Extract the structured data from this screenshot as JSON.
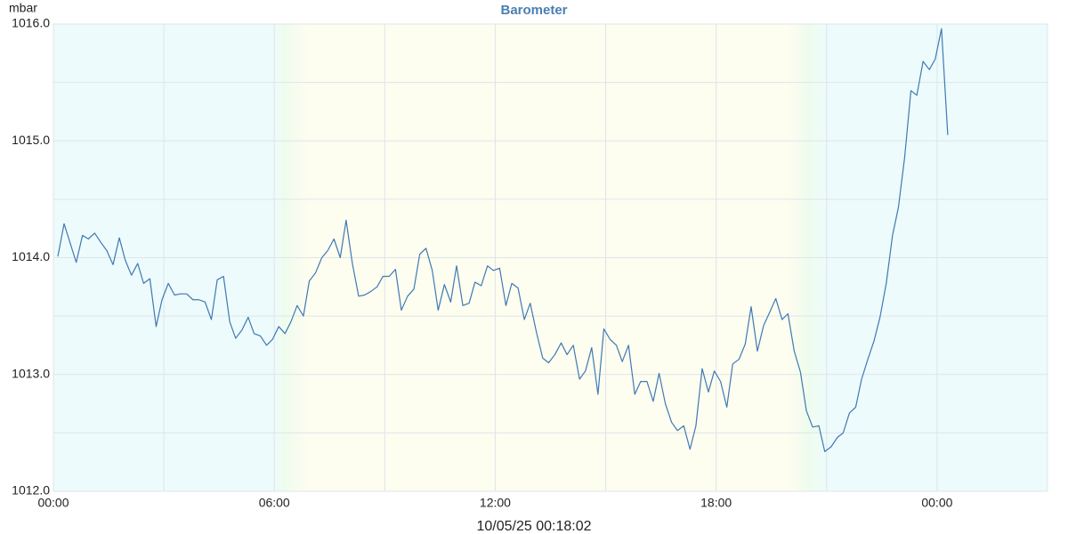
{
  "chart_data": {
    "type": "line",
    "title": "Barometer",
    "y_label": "mbar",
    "footer": "10/05/25 00:18:02",
    "xlim": [
      0,
      27
    ],
    "ylim": [
      1012,
      1016
    ],
    "xticks": [
      {
        "value": 0,
        "label": "00:00"
      },
      {
        "value": 6,
        "label": "06:00"
      },
      {
        "value": 12,
        "label": "12:00"
      },
      {
        "value": 18,
        "label": "18:00"
      },
      {
        "value": 24,
        "label": "00:00"
      }
    ],
    "xminor": [
      3,
      9,
      15,
      21
    ],
    "yticks": [
      {
        "value": 1012,
        "label": "1012.0"
      },
      {
        "value": 1013,
        "label": "1013.0"
      },
      {
        "value": 1014,
        "label": "1014.0"
      },
      {
        "value": 1015,
        "label": "1015.0"
      },
      {
        "value": 1016,
        "label": "1016.0"
      }
    ],
    "yminor": [
      1012.5,
      1013.5,
      1014.5,
      1015.5
    ],
    "grid": true,
    "x": [
      0.12,
      0.29,
      0.45,
      0.62,
      0.79,
      0.95,
      1.12,
      1.29,
      1.45,
      1.62,
      1.79,
      1.95,
      2.12,
      2.29,
      2.45,
      2.62,
      2.79,
      2.95,
      3.12,
      3.29,
      3.45,
      3.62,
      3.79,
      3.95,
      4.12,
      4.29,
      4.45,
      4.62,
      4.79,
      4.95,
      5.12,
      5.29,
      5.45,
      5.62,
      5.79,
      5.95,
      6.12,
      6.29,
      6.45,
      6.62,
      6.79,
      6.95,
      7.12,
      7.29,
      7.45,
      7.62,
      7.79,
      7.95,
      8.12,
      8.29,
      8.45,
      8.62,
      8.79,
      8.95,
      9.12,
      9.29,
      9.45,
      9.62,
      9.79,
      9.95,
      10.12,
      10.29,
      10.45,
      10.62,
      10.79,
      10.95,
      11.12,
      11.29,
      11.45,
      11.62,
      11.79,
      11.95,
      12.12,
      12.29,
      12.45,
      12.62,
      12.79,
      12.95,
      13.12,
      13.29,
      13.45,
      13.62,
      13.79,
      13.95,
      14.12,
      14.29,
      14.45,
      14.62,
      14.79,
      14.95,
      15.12,
      15.29,
      15.45,
      15.62,
      15.79,
      15.95,
      16.12,
      16.29,
      16.45,
      16.62,
      16.79,
      16.95,
      17.12,
      17.29,
      17.45,
      17.62,
      17.79,
      17.95,
      18.12,
      18.29,
      18.45,
      18.62,
      18.79,
      18.95,
      19.12,
      19.29,
      19.45,
      19.62,
      19.79,
      19.95,
      20.12,
      20.29,
      20.45,
      20.62,
      20.79,
      20.95,
      21.12,
      21.29,
      21.45,
      21.62,
      21.79,
      21.95,
      22.12,
      22.29,
      22.45,
      22.62,
      22.79,
      22.95,
      23.12,
      23.29,
      23.45,
      23.62,
      23.79,
      23.95,
      24.12,
      24.29
    ],
    "series": [
      {
        "name": "Barometer",
        "color": "#3f79b3",
        "values": [
          1014.01,
          1014.29,
          1014.13,
          1013.96,
          1014.19,
          1014.16,
          1014.21,
          1014.13,
          1014.06,
          1013.94,
          1014.17,
          1013.98,
          1013.85,
          1013.95,
          1013.78,
          1013.82,
          1013.41,
          1013.64,
          1013.78,
          1013.68,
          1013.69,
          1013.69,
          1013.64,
          1013.64,
          1013.62,
          1013.47,
          1013.81,
          1013.84,
          1013.45,
          1013.31,
          1013.38,
          1013.49,
          1013.35,
          1013.33,
          1013.25,
          1013.3,
          1013.41,
          1013.35,
          1013.45,
          1013.59,
          1013.5,
          1013.8,
          1013.87,
          1014.0,
          1014.06,
          1014.16,
          1014.0,
          1014.32,
          1013.95,
          1013.67,
          1013.68,
          1013.71,
          1013.75,
          1013.84,
          1013.84,
          1013.9,
          1013.55,
          1013.67,
          1013.73,
          1014.03,
          1014.08,
          1013.89,
          1013.55,
          1013.77,
          1013.62,
          1013.93,
          1013.59,
          1013.61,
          1013.79,
          1013.76,
          1013.93,
          1013.89,
          1013.91,
          1013.59,
          1013.78,
          1013.74,
          1013.47,
          1013.61,
          1013.36,
          1013.14,
          1013.1,
          1013.17,
          1013.27,
          1013.17,
          1013.25,
          1012.96,
          1013.03,
          1013.23,
          1012.83,
          1013.39,
          1013.3,
          1013.25,
          1013.11,
          1013.25,
          1012.83,
          1012.94,
          1012.94,
          1012.77,
          1013.01,
          1012.75,
          1012.59,
          1012.52,
          1012.56,
          1012.36,
          1012.56,
          1013.05,
          1012.85,
          1013.03,
          1012.94,
          1012.72,
          1013.09,
          1013.13,
          1013.26,
          1013.58,
          1013.2,
          1013.42,
          1013.53,
          1013.65,
          1013.47,
          1013.52,
          1013.2,
          1013.02,
          1012.69,
          1012.55,
          1012.56,
          1012.34,
          1012.38,
          1012.46,
          1012.5,
          1012.67,
          1012.72,
          1012.96,
          1013.13,
          1013.29,
          1013.49,
          1013.78,
          1014.19,
          1014.43,
          1014.86,
          1015.43,
          1015.39,
          1015.68,
          1015.61,
          1015.7,
          1015.96,
          1015.05
        ]
      }
    ]
  }
}
